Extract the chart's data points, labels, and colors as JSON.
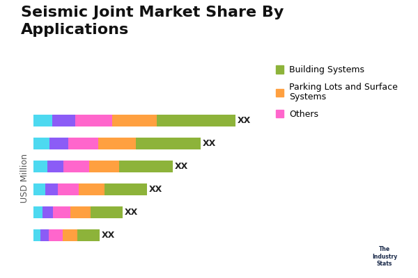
{
  "title": "Seismic Joint Market Share By\nApplications",
  "ylabel": "USD Million",
  "bar_label": "XX",
  "n_bars": 6,
  "segments": {
    "Cyan": [
      0.8,
      0.7,
      0.6,
      0.5,
      0.4,
      0.3
    ],
    "Purple": [
      1.0,
      0.8,
      0.7,
      0.55,
      0.45,
      0.35
    ],
    "Magenta": [
      1.6,
      1.3,
      1.1,
      0.9,
      0.75,
      0.6
    ],
    "Orange": [
      1.9,
      1.6,
      1.3,
      1.1,
      0.85,
      0.65
    ],
    "Green": [
      3.4,
      2.8,
      2.3,
      1.85,
      1.4,
      0.95
    ]
  },
  "colors": {
    "Cyan": "#4DD9F0",
    "Purple": "#8B5CF6",
    "Magenta": "#FF66CC",
    "Orange": "#FFA040",
    "Green": "#8DB33A"
  },
  "legend_items": [
    {
      "label": "Building Systems",
      "color": "#8DB33A"
    },
    {
      "label": "Parking Lots and Surface\nSystems",
      "color": "#FFA040"
    },
    {
      "label": "Others",
      "color": "#FF66CC"
    }
  ],
  "background_color": "#FFFFFF",
  "title_fontsize": 16,
  "axis_label_fontsize": 9,
  "legend_fontsize": 9,
  "bar_height": 0.5
}
